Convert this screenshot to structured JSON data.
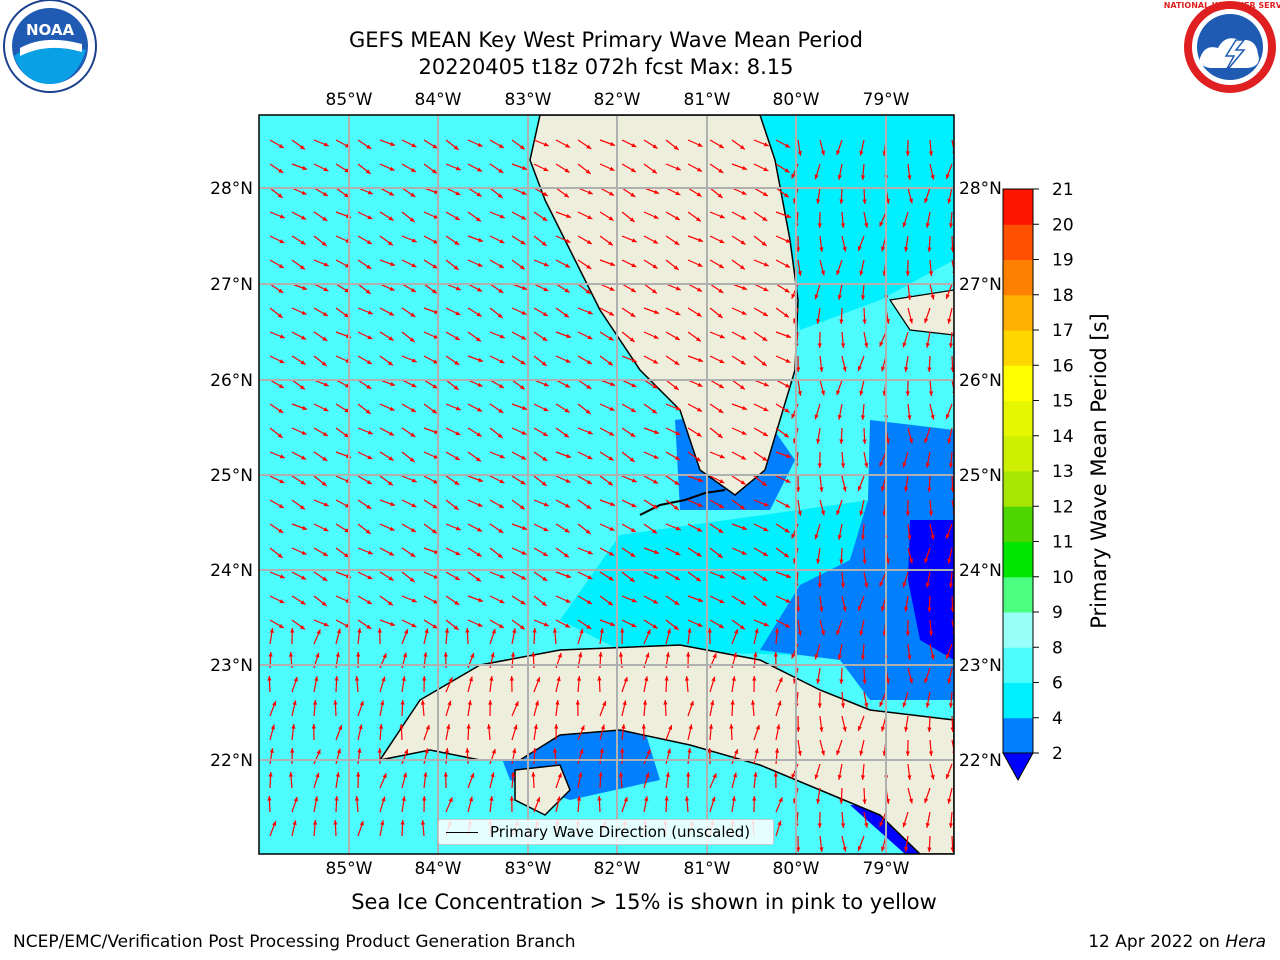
{
  "title": {
    "line1": "GEFS MEAN Key West Primary Wave Mean Period",
    "line2": "20220405 t18z 072h fcst   Max: 8.15"
  },
  "logos": {
    "left": "NOAA",
    "right": "NATIONAL WEATHER SERVICE"
  },
  "map": {
    "lon_labels": [
      "85°W",
      "84°W",
      "83°W",
      "82°W",
      "81°W",
      "80°W",
      "79°W"
    ],
    "lat_labels": [
      "28°N",
      "27°N",
      "26°N",
      "25°N",
      "24°N",
      "23°N",
      "22°N"
    ],
    "colors": {
      "ocean": "#4dfcfc",
      "ocean_light": "#00f0ff",
      "blue_mid": "#0080ff",
      "blue_dark": "#0000ff",
      "land": "#eeeedc",
      "arrow": "#ff0000",
      "grid": "#b0b0b0"
    }
  },
  "legend": {
    "label": "Primary Wave Direction (unscaled)"
  },
  "colorbar": {
    "label": "Primary Wave Mean Period [s]",
    "ticks": [
      "2",
      "4",
      "6",
      "8",
      "9",
      "10",
      "11",
      "12",
      "13",
      "14",
      "15",
      "16",
      "17",
      "18",
      "19",
      "20",
      "21"
    ],
    "colors": [
      "#0080ff",
      "#00f0ff",
      "#4dfcfc",
      "#99fff9",
      "#4dff80",
      "#00e600",
      "#4dd600",
      "#a6e600",
      "#ccf000",
      "#e6f500",
      "#ffff00",
      "#ffd700",
      "#ffb000",
      "#ff8000",
      "#ff5000",
      "#ff1400"
    ]
  },
  "subtitle": "Sea Ice Concentration > 15% is shown in pink to yellow",
  "footer": {
    "left": "NCEP/EMC/Verification Post Processing Product Generation Branch",
    "right_date": "12 Apr 2022 on ",
    "right_host": "Hera"
  }
}
